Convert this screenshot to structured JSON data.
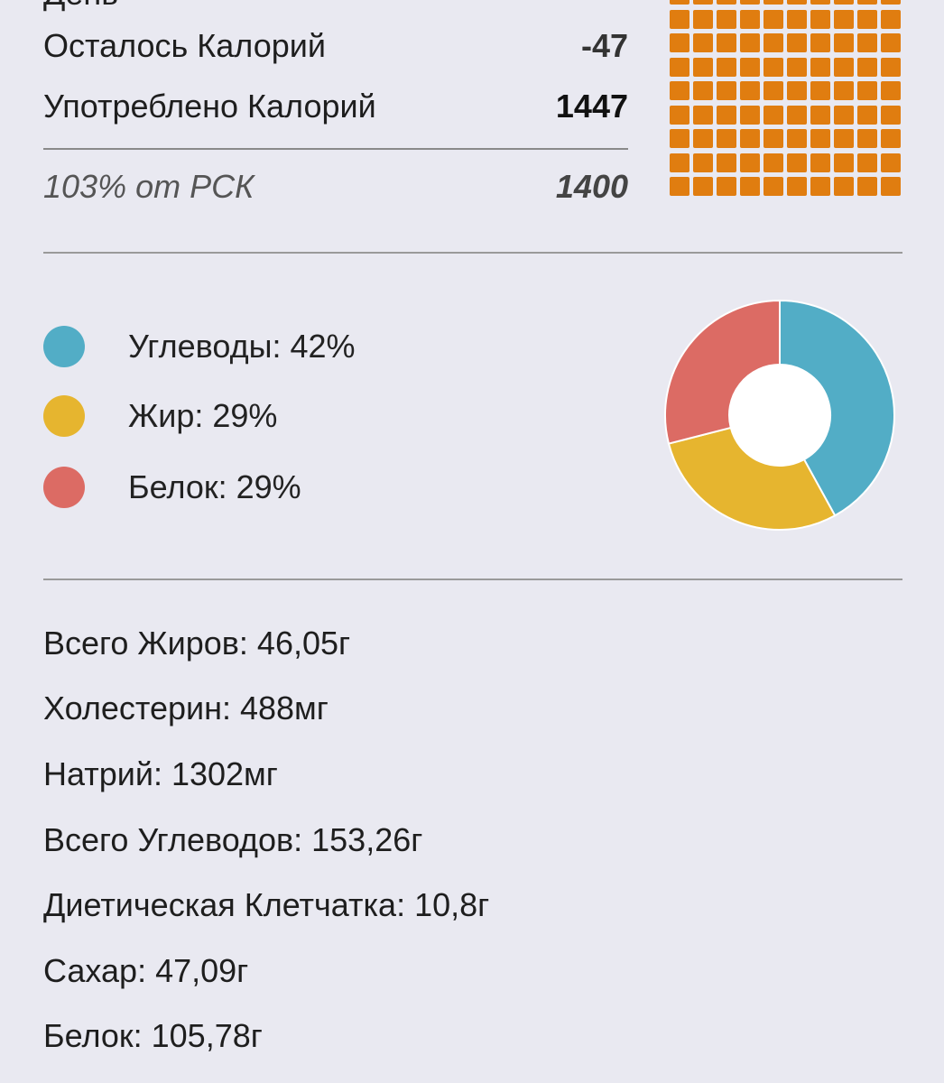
{
  "summary": {
    "cut_top_text": "День",
    "remaining_label": "Осталось Калорий",
    "remaining_value": "-47",
    "consumed_label": "Употреблено Калорий",
    "consumed_value": "1447",
    "rsk_label": "103% от РСК",
    "rsk_value": "1400"
  },
  "waffle": {
    "color": "#e07d10",
    "percent_of_goal": 103
  },
  "macros": {
    "items": [
      {
        "label": "Углеводы: 42%",
        "percent": 42,
        "color": "#52adc6"
      },
      {
        "label": "Жир: 29%",
        "percent": 29,
        "color": "#e6b52f"
      },
      {
        "label": "Белок: 29%",
        "percent": 29,
        "color": "#dc6b64"
      }
    ]
  },
  "nutrients": {
    "items": [
      "Всего Жиров: 46,05г",
      "Холестерин: 488мг",
      "Натрий: 1302мг",
      "Всего Углеводов: 153,26г",
      "Диетическая Клетчатка: 10,8г",
      "Сахар: 47,09г",
      "Белок: 105,78г"
    ]
  }
}
